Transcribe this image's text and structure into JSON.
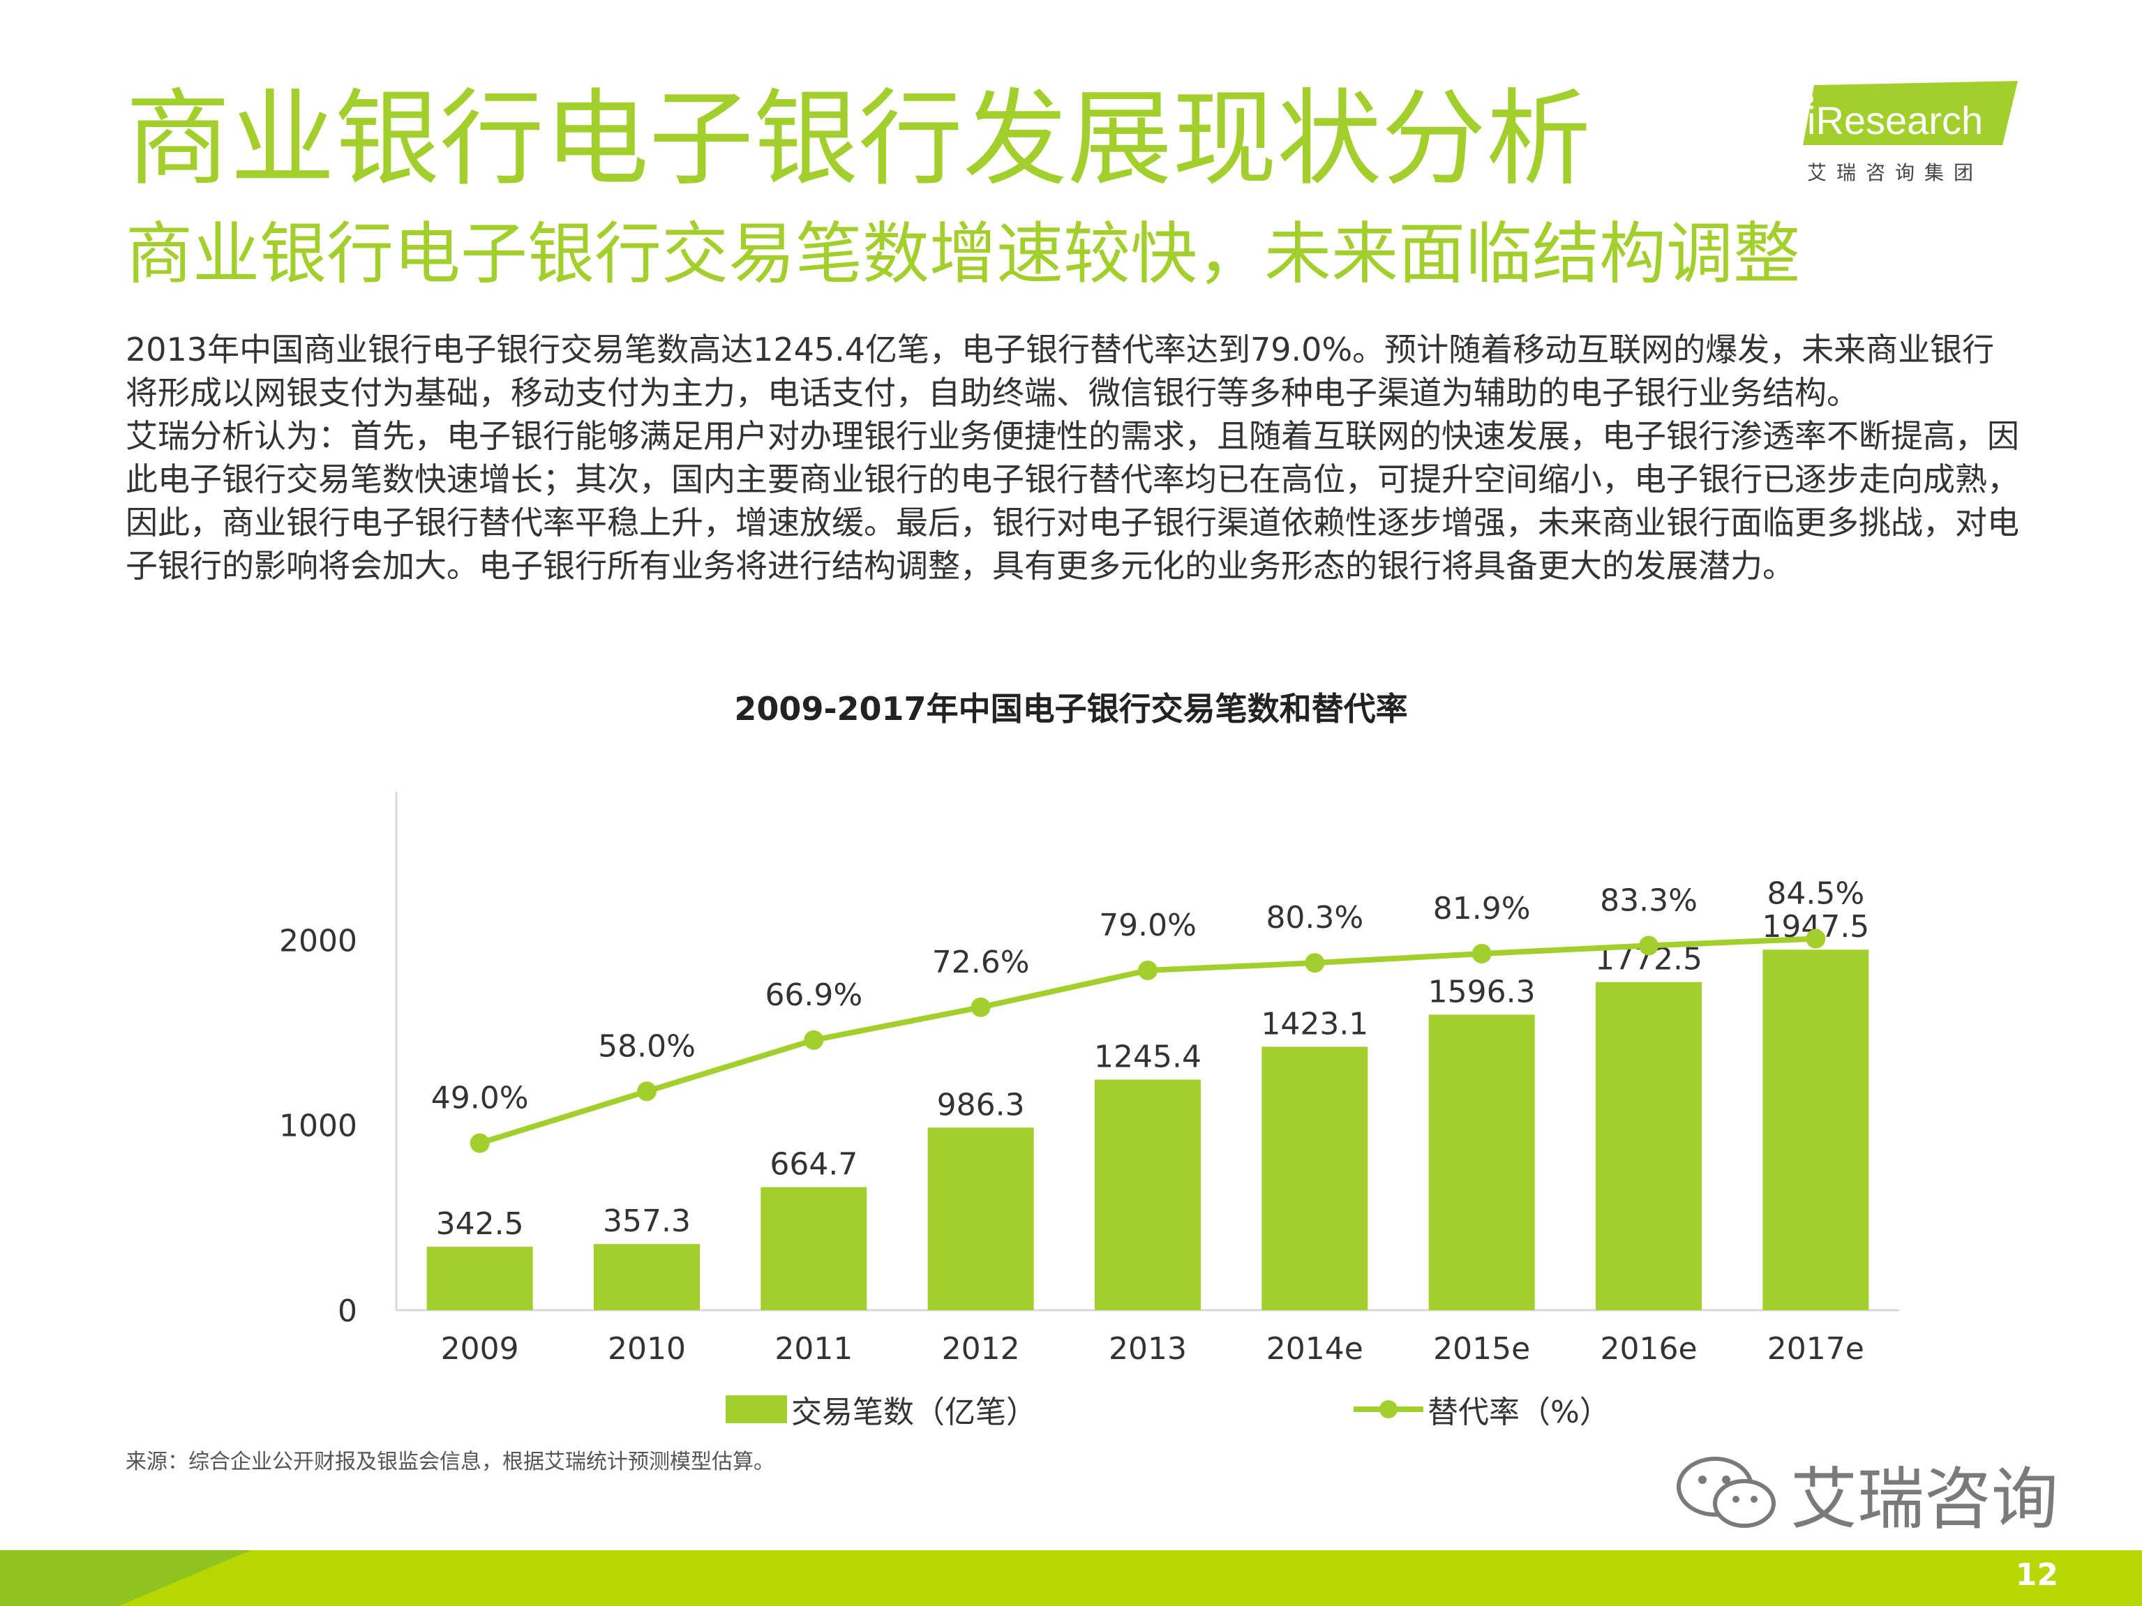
{
  "header": {
    "title": "商业银行电子银行发展现状分析",
    "subtitle": "商业银行电子银行交易笔数增速较快，未来面临结构调整"
  },
  "logo": {
    "brand": "iResearch",
    "tagline": "艾瑞咨询集团"
  },
  "body": {
    "paragraphs": [
      "2013年中国商业银行电子银行交易笔数高达1245.4亿笔，电子银行替代率达到79.0%。预计随着移动互联网的爆发，未来商业银行将形成以网银支付为基础，移动支付为主力，电话支付，自助终端、微信银行等多种电子渠道为辅助的电子银行业务结构。",
      "艾瑞分析认为：首先，电子银行能够满足用户对办理银行业务便捷性的需求，且随着互联网的快速发展，电子银行渗透率不断提高，因此电子银行交易笔数快速增长；其次，国内主要商业银行的电子银行替代率均已在高位，可提升空间缩小，电子银行已逐步走向成熟，因此，商业银行电子银行替代率平稳上升，增速放缓。最后，银行对电子银行渠道依赖性逐步增强，未来商业银行面临更多挑战，对电子银行的影响将会加大。电子银行所有业务将进行结构调整，具有更多元化的业务形态的银行将具备更大的发展潜力。"
    ]
  },
  "chart_data": {
    "type": "bar",
    "title": "2009-2017年中国电子银行交易笔数和替代率",
    "categories": [
      "2009",
      "2010",
      "2011",
      "2012",
      "2013",
      "2014e",
      "2015e",
      "2016e",
      "2017e"
    ],
    "series": [
      {
        "name": "交易笔数（亿笔）",
        "type": "bar",
        "values": [
          342.5,
          357.3,
          664.7,
          986.3,
          1245.4,
          1423.1,
          1596.3,
          1772.5,
          1947.5
        ],
        "labels": [
          "342.5",
          "357.3",
          "664.7",
          "986.3",
          "1245.4",
          "1423.1",
          "1596.3",
          "1772.5",
          "1947.5"
        ],
        "color": "#a3cf2c"
      },
      {
        "name": "替代率（%）",
        "type": "line",
        "values": [
          49.0,
          58.0,
          66.9,
          72.6,
          79.0,
          80.3,
          81.9,
          83.3,
          84.5
        ],
        "labels": [
          "49.0%",
          "58.0%",
          "66.9%",
          "72.6%",
          "79.0%",
          "80.3%",
          "81.9%",
          "83.3%",
          "84.5%"
        ],
        "color": "#a3cf2c"
      }
    ],
    "y_ticks": [
      "0",
      "1000",
      "2000"
    ],
    "ylim": [
      0,
      2800
    ],
    "grid": false,
    "legend_position": "bottom"
  },
  "source": "来源：综合企业公开财报及银监会信息，根据艾瑞统计预测模型估算。",
  "watermark": "艾瑞咨询",
  "page_number": "12",
  "colors": {
    "accent": "#a3cf2c",
    "footer": "#b6d700",
    "footer_dark": "#8fc31f"
  }
}
